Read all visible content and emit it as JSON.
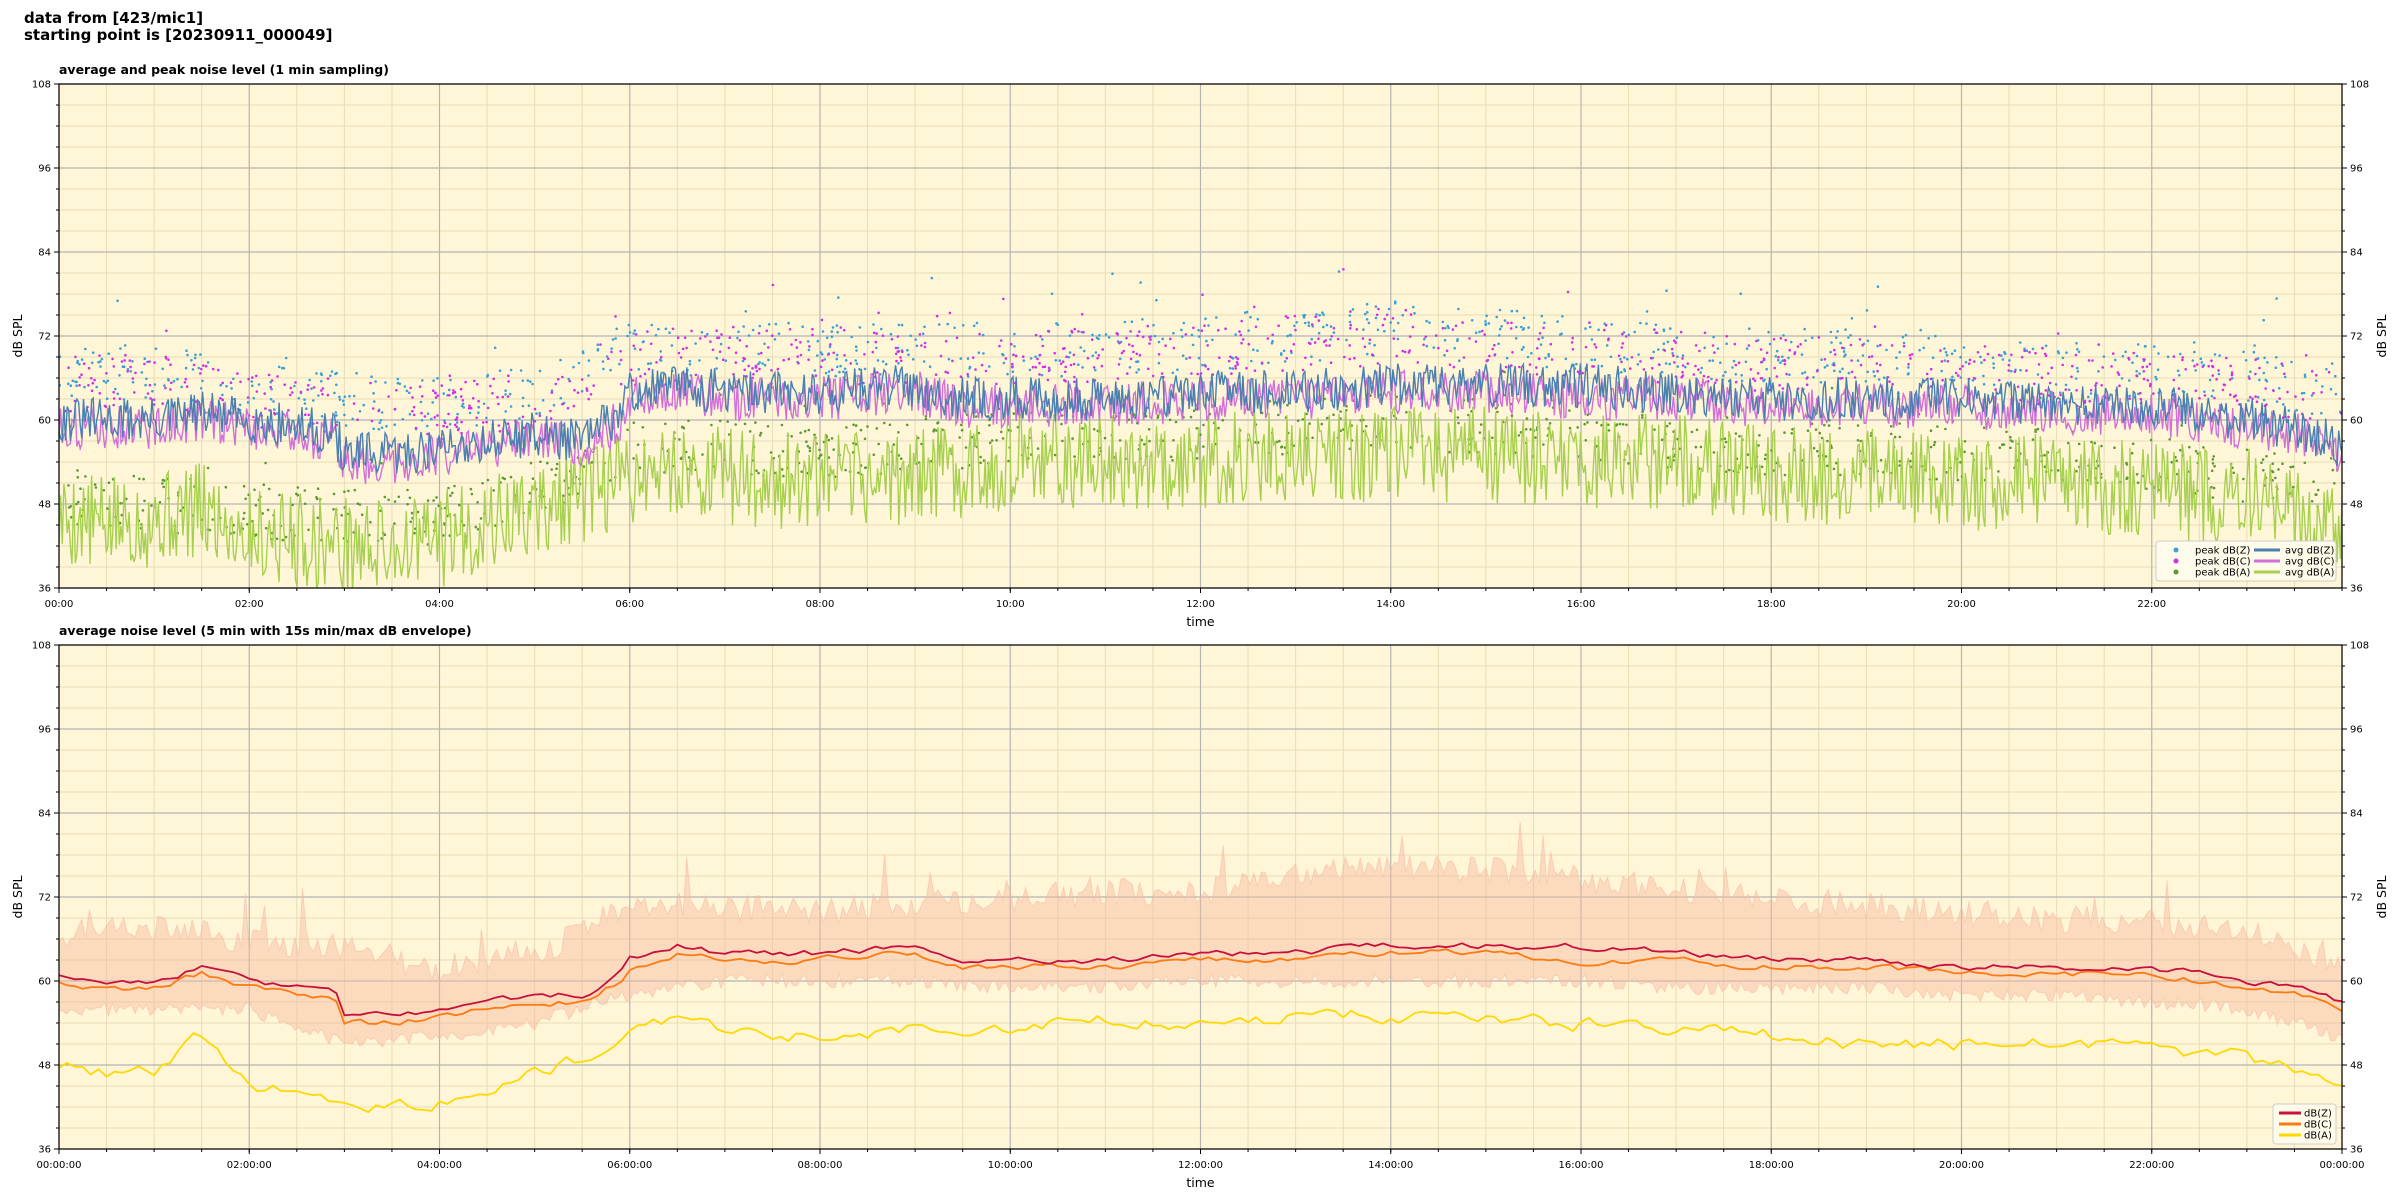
{
  "header": {
    "line1": "data from [423/mic1]",
    "line2": "starting point is [20230911_000049]"
  },
  "colors": {
    "plot_bg": "#fff6d8",
    "grid_major": "#b4b4b4",
    "grid_minor": "#e8dcb4",
    "peak_z": "#3aa0d8",
    "peak_c": "#d030e8",
    "peak_a": "#5a9a30",
    "avg_z": "#4a7fb0",
    "avg_c": "#d070d8",
    "avg_a": "#a8d050",
    "dbz": "#c8103a",
    "dbc": "#ff7a10",
    "dba": "#ffd800",
    "envelope": "#f6b8a0"
  },
  "chart_data": [
    {
      "type": "line",
      "title": "average and peak noise level (1 min sampling)",
      "xlabel": "time",
      "ylabel": "dB SPL",
      "ylabel_right": "dB SPL",
      "ylim": [
        36,
        108
      ],
      "yticks": [
        36,
        48,
        60,
        72,
        84,
        96,
        108
      ],
      "xlim_hours": [
        0,
        24
      ],
      "xticks": [
        "00:00",
        "02:00",
        "04:00",
        "06:00",
        "08:00",
        "10:00",
        "12:00",
        "14:00",
        "16:00",
        "18:00",
        "20:00",
        "22:00"
      ],
      "grid": true,
      "legend_position": "lower-right",
      "legend": [
        {
          "label": "peak dB(Z)",
          "kind": "dot",
          "color_key": "peak_z"
        },
        {
          "label": "avg dB(Z)",
          "kind": "line",
          "color_key": "avg_z"
        },
        {
          "label": "peak dB(C)",
          "kind": "dot",
          "color_key": "peak_c"
        },
        {
          "label": "avg dB(C)",
          "kind": "line",
          "color_key": "avg_c"
        },
        {
          "label": "peak dB(A)",
          "kind": "dot",
          "color_key": "peak_a"
        },
        {
          "label": "avg dB(A)",
          "kind": "line",
          "color_key": "avg_a"
        }
      ],
      "series": [
        {
          "name": "avg dB(Z)",
          "x_hours": [
            0,
            0.5,
            1,
            1.5,
            2,
            2.5,
            2.9,
            3,
            3.5,
            4,
            4.5,
            5,
            5.5,
            5.9,
            6,
            6.5,
            7,
            8,
            9,
            9.5,
            10,
            11,
            12,
            13,
            14,
            15,
            16,
            17,
            18,
            19,
            20,
            21,
            22,
            23,
            23.5,
            24
          ],
          "values": [
            60,
            60,
            60,
            61,
            60,
            59,
            58,
            55,
            55,
            56,
            57,
            58,
            57,
            61,
            64,
            65,
            64,
            64,
            65,
            63,
            63,
            63,
            64,
            64,
            65,
            65,
            65,
            64,
            63,
            63,
            63,
            62,
            62,
            60,
            59,
            56
          ]
        },
        {
          "name": "avg dB(C)",
          "x_hours": [
            0,
            0.5,
            1,
            1.5,
            2,
            2.5,
            2.9,
            3,
            3.5,
            4,
            4.5,
            5,
            5.5,
            5.9,
            6,
            6.5,
            7,
            8,
            9,
            9.5,
            10,
            11,
            12,
            13,
            14,
            15,
            16,
            17,
            18,
            19,
            20,
            21,
            22,
            23,
            23.5,
            24
          ],
          "values": [
            59,
            59,
            59,
            60,
            59,
            58,
            57,
            54,
            54,
            55,
            56,
            57,
            56,
            60,
            63,
            64,
            63,
            63,
            64,
            62,
            62,
            62,
            63,
            63,
            64,
            64,
            63,
            63,
            62,
            62,
            62,
            61,
            61,
            59,
            58,
            55
          ]
        },
        {
          "name": "avg dB(A)",
          "x_hours": [
            0,
            0.5,
            1,
            1.5,
            2,
            2.5,
            3,
            3.5,
            4,
            4.5,
            5,
            5.5,
            6,
            6.5,
            7,
            8,
            9,
            10,
            11,
            12,
            13,
            14,
            15,
            16,
            17,
            18,
            19,
            20,
            21,
            22,
            23,
            23.5,
            24
          ],
          "values": [
            46,
            45,
            46,
            47,
            44,
            43,
            42,
            42,
            43,
            45,
            47,
            49,
            52,
            53,
            52,
            51,
            52,
            54,
            54,
            54,
            55,
            55,
            55,
            54,
            54,
            52,
            52,
            51,
            51,
            50,
            49,
            47,
            45
          ]
        },
        {
          "name": "peak dB(Z)",
          "x_hours": [
            0,
            1,
            2,
            3,
            4,
            5,
            6,
            7,
            8,
            9,
            10,
            11,
            12,
            13,
            14,
            15,
            16,
            17,
            18,
            19,
            20,
            21,
            22,
            23,
            24
          ],
          "values": [
            66,
            67,
            64,
            63,
            62,
            64,
            70,
            70,
            70,
            70,
            70,
            70,
            71,
            72,
            73,
            72,
            71,
            70,
            69,
            69,
            68,
            67,
            67,
            66,
            64
          ]
        },
        {
          "name": "peak dB(C)",
          "x_hours": [
            0,
            1,
            2,
            3,
            4,
            5,
            6,
            7,
            8,
            9,
            10,
            11,
            12,
            13,
            14,
            15,
            16,
            17,
            18,
            19,
            20,
            21,
            22,
            23,
            24
          ],
          "values": [
            65,
            66,
            63,
            62,
            61,
            63,
            69,
            69,
            69,
            69,
            69,
            69,
            70,
            71,
            72,
            71,
            70,
            69,
            68,
            68,
            67,
            66,
            66,
            65,
            63
          ]
        },
        {
          "name": "peak dB(A)",
          "x_hours": [
            0,
            1,
            2,
            3,
            4,
            5,
            6,
            7,
            8,
            9,
            10,
            11,
            12,
            13,
            14,
            15,
            16,
            17,
            18,
            19,
            20,
            21,
            22,
            23,
            24
          ],
          "values": [
            49,
            48,
            47,
            46,
            46,
            50,
            56,
            56,
            55,
            56,
            58,
            58,
            58,
            59,
            60,
            59,
            58,
            57,
            56,
            56,
            55,
            55,
            54,
            52,
            50
          ]
        }
      ]
    },
    {
      "type": "line",
      "title": "average noise level (5 min with 15s min/max dB envelope)",
      "xlabel": "time",
      "ylabel": "dB SPL",
      "ylabel_right": "dB SPL",
      "ylim": [
        36,
        108
      ],
      "yticks": [
        36,
        48,
        60,
        72,
        84,
        96,
        108
      ],
      "xlim_hours": [
        0,
        24
      ],
      "xticks": [
        "00:00:00",
        "02:00:00",
        "04:00:00",
        "06:00:00",
        "08:00:00",
        "10:00:00",
        "12:00:00",
        "14:00:00",
        "16:00:00",
        "18:00:00",
        "20:00:00",
        "22:00:00",
        "00:00:00"
      ],
      "grid": true,
      "legend_position": "lower-right",
      "legend": [
        {
          "label": "dB(Z)",
          "kind": "line",
          "color_key": "dbz"
        },
        {
          "label": "dB(C)",
          "kind": "line",
          "color_key": "dbc"
        },
        {
          "label": "dB(A)",
          "kind": "line",
          "color_key": "dba"
        }
      ],
      "series": [
        {
          "name": "dB(Z)",
          "x_hours": [
            0,
            0.5,
            1,
            1.5,
            2,
            2.5,
            2.9,
            3,
            3.5,
            4,
            4.5,
            5,
            5.5,
            5.9,
            6,
            6.5,
            7,
            8,
            9,
            9.5,
            10,
            11,
            12,
            13,
            14,
            15,
            16,
            17,
            18,
            19,
            20,
            21,
            22,
            23,
            23.5,
            24
          ],
          "values": [
            61,
            60,
            60,
            62,
            60,
            59,
            59,
            55,
            55,
            56,
            57,
            58,
            58,
            61,
            63,
            65,
            64,
            64,
            65,
            63,
            63,
            63,
            64,
            64,
            65,
            65,
            65,
            64,
            63,
            63,
            62,
            62,
            62,
            60,
            59,
            57
          ]
        },
        {
          "name": "dB(C)",
          "x_hours": [
            0,
            0.5,
            1,
            1.5,
            2,
            2.5,
            2.9,
            3,
            3.5,
            4,
            4.5,
            5,
            5.5,
            5.9,
            6,
            6.5,
            7,
            8,
            9,
            9.5,
            10,
            11,
            12,
            13,
            14,
            15,
            16,
            17,
            18,
            19,
            20,
            21,
            22,
            23,
            23.5,
            24
          ],
          "values": [
            60,
            59,
            59,
            61,
            59,
            58,
            58,
            54,
            54,
            55,
            56,
            57,
            57,
            60,
            62,
            64,
            63,
            63,
            64,
            62,
            62,
            62,
            63,
            63,
            64,
            64,
            63,
            63,
            62,
            62,
            61,
            61,
            61,
            59,
            58,
            56
          ]
        },
        {
          "name": "dB(A)",
          "x_hours": [
            0,
            0.5,
            1,
            1.5,
            2,
            2.5,
            3,
            3.5,
            4,
            4.5,
            5,
            5.5,
            6,
            6.5,
            7,
            8,
            9,
            10,
            11,
            12,
            13,
            14,
            15,
            16,
            17,
            18,
            19,
            20,
            21,
            22,
            23,
            23.5,
            24
          ],
          "values": [
            48,
            47,
            47,
            52,
            45,
            44,
            43,
            42,
            43,
            45,
            47,
            49,
            53,
            54,
            53,
            52,
            53,
            54,
            55,
            54,
            55,
            55,
            55,
            54,
            53,
            52,
            51,
            51,
            51,
            50,
            49,
            47,
            45
          ]
        }
      ],
      "envelope": {
        "x_hours": [
          0,
          1,
          2,
          3,
          4,
          5,
          6,
          7,
          8,
          9,
          10,
          11,
          12,
          13,
          14,
          15,
          16,
          17,
          18,
          19,
          20,
          21,
          22,
          23,
          24
        ],
        "min": [
          57,
          57,
          57,
          52,
          53,
          55,
          59,
          61,
          61,
          61,
          60,
          60,
          61,
          61,
          61,
          61,
          61,
          60,
          60,
          60,
          59,
          59,
          58,
          57,
          53
        ],
        "max": [
          66,
          67,
          65,
          64,
          61,
          63,
          70,
          70,
          69,
          70,
          71,
          72,
          72,
          74,
          76,
          75,
          74,
          72,
          71,
          70,
          69,
          68,
          68,
          66,
          62
        ]
      }
    }
  ]
}
